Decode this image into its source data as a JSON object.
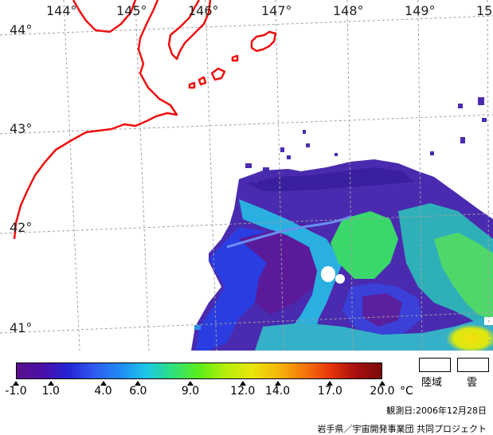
{
  "longitude_labels": [
    "144°",
    "145°",
    "146°",
    "147°",
    "148°",
    "149°",
    "15"
  ],
  "latitude_labels": [
    "44°",
    "43°",
    "42°",
    "41°"
  ],
  "colorbar": {
    "tick_labels": [
      "-1.0",
      "1.0",
      "4.0",
      "6.0",
      "9.0",
      "12.0",
      "14.0",
      "17.0",
      "20.0"
    ],
    "tick_values": [
      -1.0,
      1.0,
      4.0,
      6.0,
      9.0,
      12.0,
      14.0,
      17.0,
      20.0
    ],
    "min": -1.0,
    "max": 20.0,
    "unit": "°C",
    "stops": [
      "#5a0f8c",
      "#4b0fa8",
      "#2424d6",
      "#2f5cf0",
      "#1f8cf5",
      "#1cc8e6",
      "#2ee07a",
      "#5ced1a",
      "#b4ee0a",
      "#e8e60a",
      "#f5b80a",
      "#f57a0a",
      "#e8360a",
      "#a80f0f",
      "#7a0a0a"
    ]
  },
  "legend": {
    "land_label": "陸域",
    "cloud_label": "雲"
  },
  "observation_date": "観測日:2006年12月28日",
  "credit": "岩手県／宇宙開発事業団  共同プロジェクト",
  "colors": {
    "coastline": "#ee1111",
    "grid": "#9a9a9a"
  }
}
